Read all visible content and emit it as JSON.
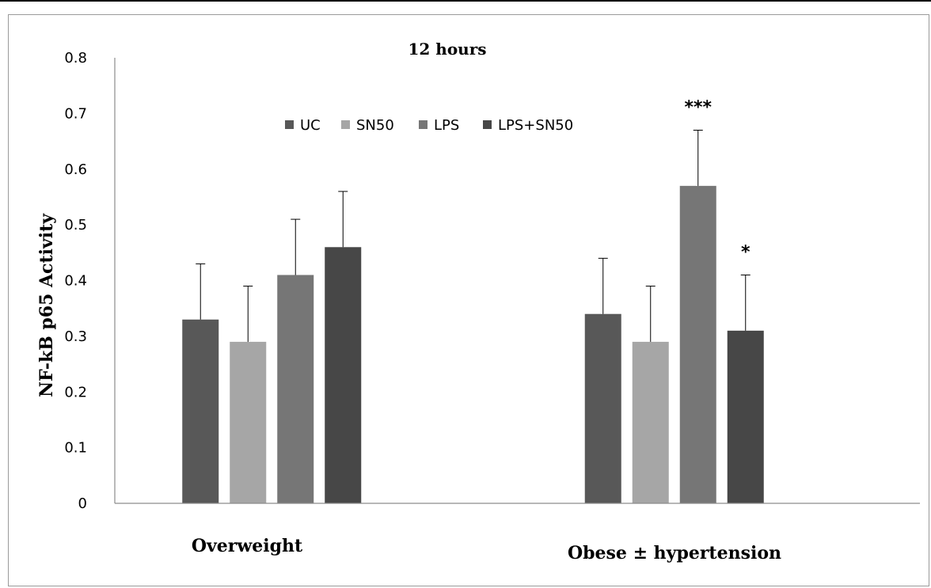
{
  "chart_data": {
    "type": "bar",
    "title": "12 hours",
    "ylabel": "NF-kB p65 Activity",
    "xlabel": "",
    "ylim": [
      0,
      0.8
    ],
    "yticks": [
      "0",
      "0.1",
      "0.2",
      "0.3",
      "0.4",
      "0.5",
      "0.6",
      "0.7",
      "0.8"
    ],
    "categories": [
      "Overweight",
      "Obese ± hypertension"
    ],
    "series": [
      {
        "name": "UC",
        "color": "#585858",
        "values": [
          0.33,
          0.34
        ],
        "errors": [
          0.1,
          0.1
        ],
        "annotations": [
          "",
          ""
        ]
      },
      {
        "name": "SN50",
        "color": "#a6a6a6",
        "values": [
          0.29,
          0.29
        ],
        "errors": [
          0.1,
          0.1
        ],
        "annotations": [
          "",
          ""
        ]
      },
      {
        "name": "LPS",
        "color": "#767676",
        "values": [
          0.41,
          0.57
        ],
        "errors": [
          0.1,
          0.1
        ],
        "annotations": [
          "",
          "***"
        ]
      },
      {
        "name": "LPS+SN50",
        "color": "#474747",
        "values": [
          0.46,
          0.31
        ],
        "errors": [
          0.1,
          0.1
        ],
        "annotations": [
          "",
          "*"
        ]
      }
    ],
    "legend_position": "top-center",
    "grid": false
  }
}
